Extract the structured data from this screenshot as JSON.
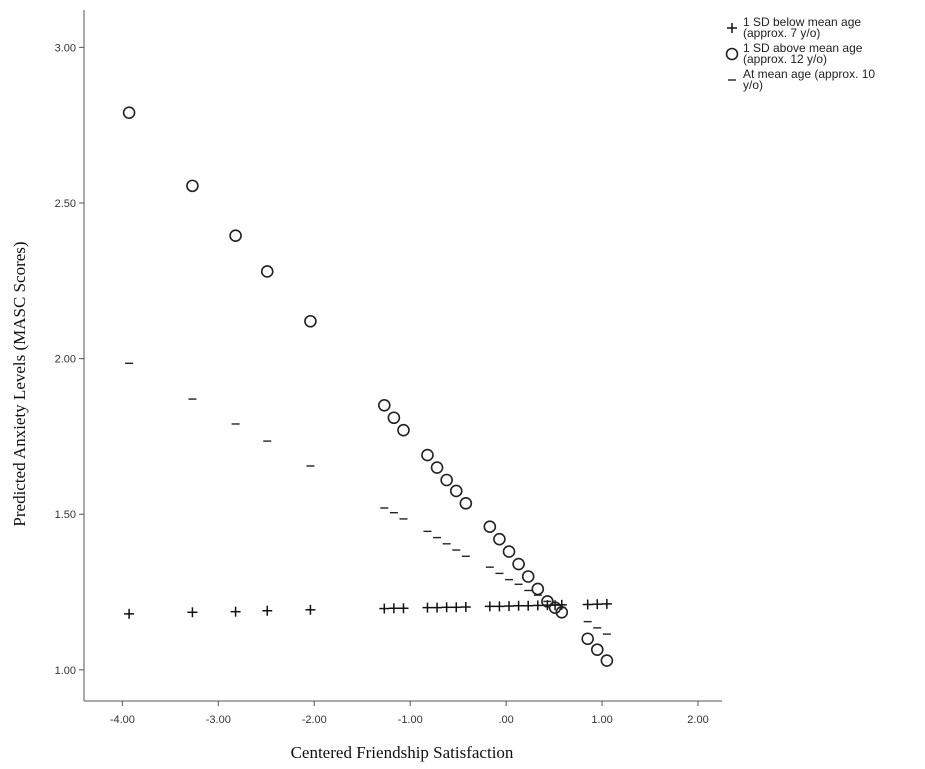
{
  "chart_data": {
    "type": "scatter",
    "title": "",
    "xlabel": "Centered Friendship Satisfaction",
    "ylabel": "Predicted Anxiety Levels (MASC Scores)",
    "xlim": [
      -4.4,
      2.25
    ],
    "ylim": [
      0.9,
      3.12
    ],
    "x_ticks": [
      -4.0,
      -3.0,
      -2.0,
      -1.0,
      0.0,
      1.0,
      2.0
    ],
    "x_tick_labels": [
      "-4.00",
      "-3.00",
      "-2.00",
      "-1.00",
      ".00",
      "1.00",
      "2.00"
    ],
    "y_ticks": [
      1.0,
      1.5,
      2.0,
      2.5,
      3.0
    ],
    "y_tick_labels": [
      "1.00",
      "1.50",
      "2.00",
      "2.50",
      "3.00"
    ],
    "grid": false,
    "legend_position": "top-right",
    "series": [
      {
        "name": "1 SD below mean age (approx. 7 y/o)",
        "legend_lines": [
          "1 SD below mean age",
          "(approx. 7 y/o)"
        ],
        "marker": "plus",
        "x": [
          -3.93,
          -3.27,
          -2.82,
          -2.49,
          -2.04,
          -1.27,
          -1.17,
          -1.07,
          -0.82,
          -0.72,
          -0.62,
          -0.52,
          -0.42,
          -0.17,
          -0.07,
          0.03,
          0.13,
          0.23,
          0.33,
          0.43,
          0.51,
          0.58,
          0.85,
          0.95,
          1.05
        ],
        "y": [
          1.18,
          1.185,
          1.187,
          1.19,
          1.193,
          1.197,
          1.198,
          1.198,
          1.2,
          1.2,
          1.201,
          1.201,
          1.202,
          1.204,
          1.204,
          1.205,
          1.206,
          1.206,
          1.207,
          1.208,
          1.208,
          1.209,
          1.21,
          1.211,
          1.212
        ]
      },
      {
        "name": "1 SD above mean age (approx. 12 y/o)",
        "legend_lines": [
          "1 SD above mean age",
          "(approx. 12 y/o)"
        ],
        "marker": "circle",
        "x": [
          -3.93,
          -3.27,
          -2.82,
          -2.49,
          -2.04,
          -1.27,
          -1.17,
          -1.07,
          -0.82,
          -0.72,
          -0.62,
          -0.52,
          -0.42,
          -0.17,
          -0.07,
          0.03,
          0.13,
          0.23,
          0.33,
          0.43,
          0.51,
          0.58,
          0.85,
          0.95,
          1.05
        ],
        "y": [
          2.79,
          2.555,
          2.395,
          2.28,
          2.12,
          1.85,
          1.81,
          1.77,
          1.69,
          1.65,
          1.61,
          1.575,
          1.535,
          1.46,
          1.42,
          1.38,
          1.34,
          1.3,
          1.26,
          1.22,
          1.2,
          1.185,
          1.1,
          1.065,
          1.03
        ]
      },
      {
        "name": "At mean age (approx. 10 y/o)",
        "legend_lines": [
          "At mean age (approx. 10",
          "y/o)"
        ],
        "marker": "dash",
        "x": [
          -3.93,
          -3.27,
          -2.82,
          -2.49,
          -2.04,
          -1.27,
          -1.17,
          -1.07,
          -0.82,
          -0.72,
          -0.62,
          -0.52,
          -0.42,
          -0.17,
          -0.07,
          0.03,
          0.13,
          0.23,
          0.33,
          0.43,
          0.51,
          0.58,
          0.85,
          0.95,
          1.05
        ],
        "y": [
          1.985,
          1.87,
          1.79,
          1.735,
          1.655,
          1.52,
          1.505,
          1.485,
          1.445,
          1.425,
          1.405,
          1.385,
          1.365,
          1.33,
          1.31,
          1.29,
          1.275,
          1.255,
          1.24,
          1.22,
          1.21,
          1.2,
          1.155,
          1.135,
          1.115
        ]
      }
    ]
  }
}
